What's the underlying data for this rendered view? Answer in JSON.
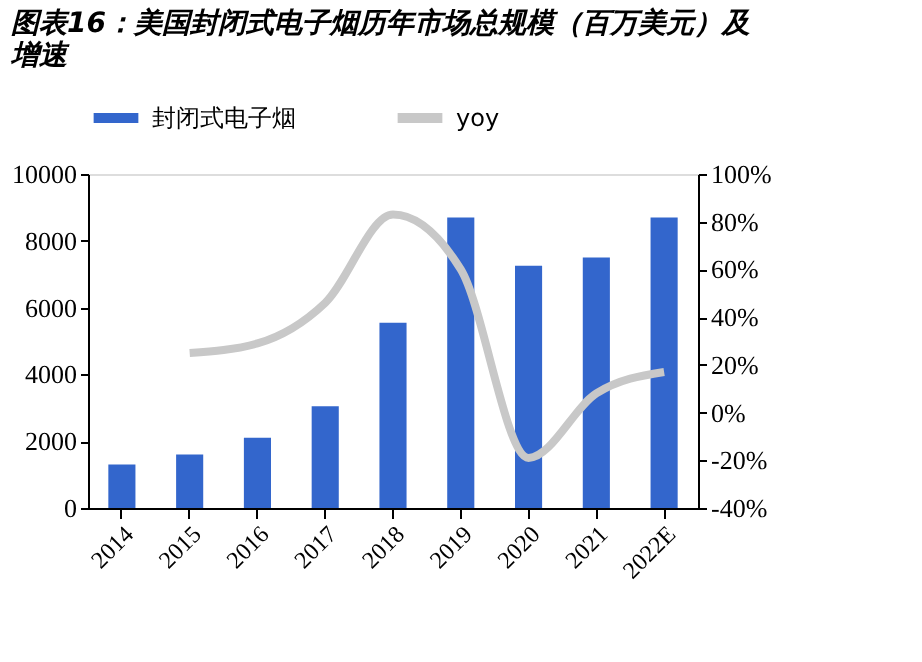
{
  "chart_data": {
    "type": "bar",
    "title": [
      "图表16：美国封闭式电子烟历年市场总规模（百万美元）及",
      "增速"
    ],
    "categories": [
      "2014",
      "2015",
      "2016",
      "2017",
      "2018",
      "2019",
      "2020",
      "2021",
      "2022E"
    ],
    "series": [
      {
        "name": "封闭式电子烟",
        "color": "#3366cc",
        "values": [
          1300,
          1600,
          2100,
          3050,
          5550,
          8700,
          7250,
          7500,
          8700
        ]
      },
      {
        "name": "yoy",
        "type": "line",
        "axis": "y2",
        "color": "#c8c8c8",
        "values": [
          null,
          25,
          29,
          46,
          83,
          60,
          -19,
          8,
          17
        ]
      }
    ],
    "ylim": [
      0,
      10000
    ],
    "yticks": [
      0,
      2000,
      4000,
      6000,
      8000,
      10000
    ],
    "y2lim": [
      -40,
      100
    ],
    "y2ticks": [
      {
        "value": -40,
        "label": "-40%"
      },
      {
        "value": -20,
        "label": "-20%"
      },
      {
        "value": 0,
        "label": "0%"
      },
      {
        "value": 20,
        "label": "20%"
      },
      {
        "value": 40,
        "label": "40%"
      },
      {
        "value": 60,
        "label": "60%"
      },
      {
        "value": 80,
        "label": "80%"
      },
      {
        "value": 100,
        "label": "100%"
      }
    ],
    "legend": "top",
    "grid": false,
    "marker": "none",
    "line_style": "solid"
  }
}
